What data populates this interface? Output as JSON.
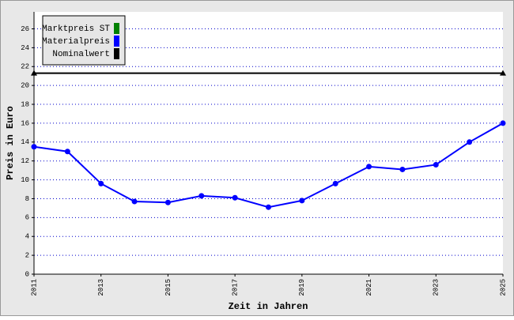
{
  "chart_data": {
    "type": "line",
    "x_label": "Zeit in Jahren",
    "y_label": "Preis in Euro",
    "x": [
      2011,
      2012,
      2013,
      2014,
      2015,
      2016,
      2017,
      2018,
      2019,
      2020,
      2021,
      2022,
      2023,
      2024,
      2025
    ],
    "xlim": [
      2011,
      2025
    ],
    "xticks": [
      2011,
      2013,
      2015,
      2017,
      2019,
      2021,
      2023,
      2025
    ],
    "ylim": [
      0,
      27.8
    ],
    "yticks": [
      0,
      2,
      4,
      6,
      8,
      10,
      12,
      14,
      16,
      18,
      20,
      22,
      24,
      26
    ],
    "grid": true,
    "legend": "top-left",
    "series": [
      {
        "name": "Marktpreis ST",
        "color": "#008000",
        "values": [
          null,
          null,
          null,
          null,
          null,
          null,
          null,
          null,
          null,
          null,
          null,
          null,
          null,
          null,
          null
        ]
      },
      {
        "name": "Materialpreis",
        "color": "#0000ff",
        "marker": "circle",
        "values": [
          13.5,
          13.0,
          9.6,
          7.7,
          7.6,
          8.3,
          8.1,
          7.1,
          7.8,
          9.6,
          11.4,
          11.1,
          11.6,
          14.0,
          16.0
        ]
      },
      {
        "name": "Nominalwert",
        "color": "#000000",
        "marker": "triangle",
        "x": [
          2011,
          2025
        ],
        "values": [
          21.3,
          21.3
        ]
      }
    ]
  }
}
